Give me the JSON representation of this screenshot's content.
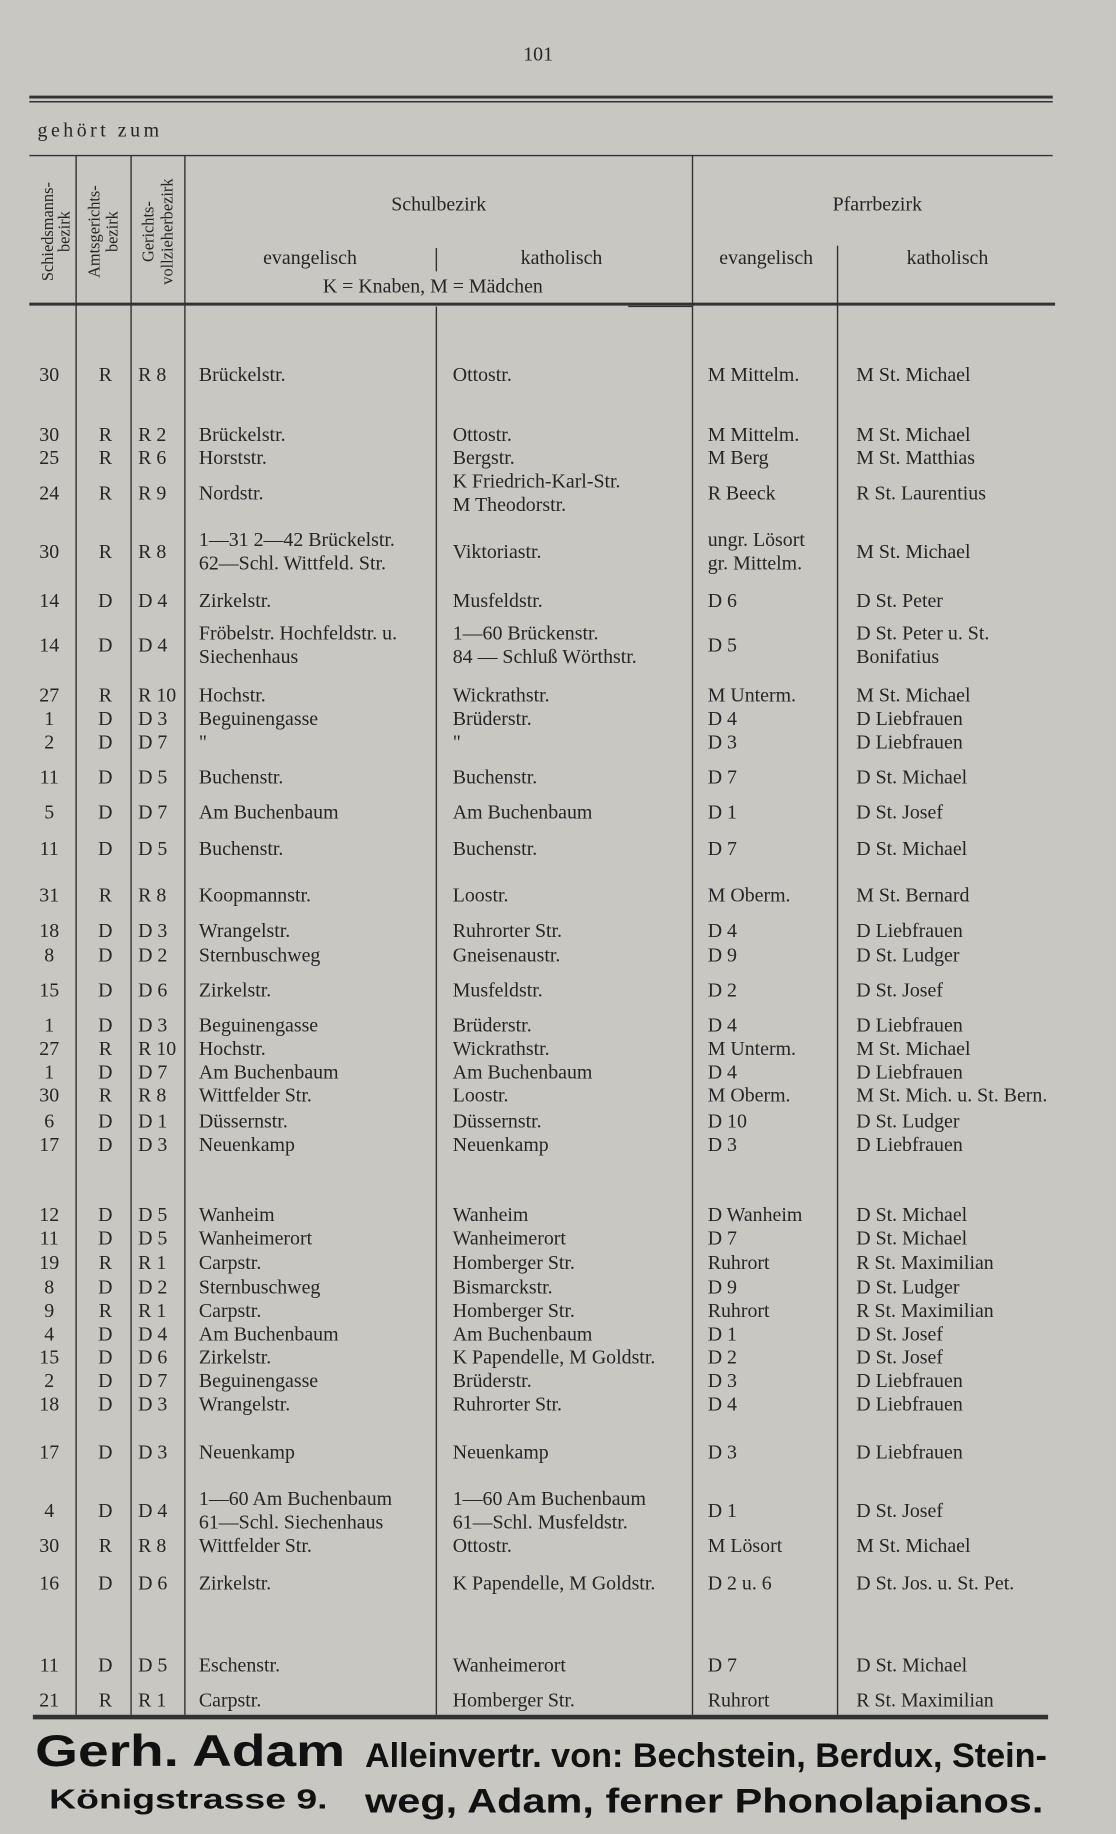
{
  "page_number": "101",
  "header_note": "gehört zum",
  "columns": {
    "schiedsmann": [
      "Schiedsmanns-",
      "bezirk"
    ],
    "amtsgericht": [
      "Amtsgerichts-",
      "bezirk"
    ],
    "gerichtsvollzieher": [
      "Gerichts-",
      "vollzieherbezirk"
    ],
    "schulbezirk": "Schulbezirk",
    "pfarrbezirk": "Pfarrbezirk",
    "schul_ev": "evangelisch",
    "schul_kath": "katholisch",
    "key": "K = Knaben, M = Mädchen",
    "pfarr_ev": "evangelisch",
    "pfarr_kath": "katholisch"
  },
  "rows": [
    [
      "30",
      "R",
      "R 8",
      "Brückelstr.",
      "Ottostr.",
      "M Mittelm.",
      "M St. Michael"
    ],
    [
      "30",
      "R",
      "R 2",
      "Brückelstr.",
      "Ottostr.",
      "M Mittelm.",
      "M St. Michael"
    ],
    [
      "25",
      "R",
      "R 6",
      "Horststr.",
      "Bergstr.",
      "M Berg",
      "M St. Matthias"
    ],
    [
      "24",
      "R",
      "R 9",
      "Nordstr.",
      [
        "K Friedrich-Karl-Str.",
        "M Theodorstr."
      ],
      "R Beeck",
      "R St. Laurentius"
    ],
    [
      "30",
      "R",
      "R 8",
      [
        "1—31 2—42 Brückelstr.",
        "62—Schl. Wittfeld. Str."
      ],
      "Viktoriastr.",
      [
        "ungr. Lösort",
        "gr. Mittelm."
      ],
      "M St. Michael"
    ],
    [
      "14",
      "D",
      "D 4",
      "Zirkelstr.",
      "Musfeldstr.",
      "D 6",
      "D St. Peter"
    ],
    [
      "14",
      "D",
      "D 4",
      [
        "Fröbelstr. Hochfeldstr. u.",
        "Siechenhaus"
      ],
      [
        "1—60 Brückenstr.",
        "84 — Schluß Wörthstr."
      ],
      "D 5",
      [
        "D St. Peter u. St.",
        "Bonifatius"
      ]
    ],
    [
      "27",
      "R",
      "R 10",
      "Hochstr.",
      "Wickrathstr.",
      "M Unterm.",
      "M St. Michael"
    ],
    [
      "1",
      "D",
      "D 3",
      "Beguinengasse",
      "Brüderstr.",
      "D 4",
      "D Liebfrauen"
    ],
    [
      "2",
      "D",
      "D 7",
      "\"",
      "\"",
      "D 3",
      "D Liebfrauen"
    ],
    [
      "11",
      "D",
      "D 5",
      "Buchenstr.",
      "Buchenstr.",
      "D 7",
      "D St. Michael"
    ],
    [
      "5",
      "D",
      "D 7",
      "Am Buchenbaum",
      "Am Buchenbaum",
      "D 1",
      "D St. Josef"
    ],
    [
      "11",
      "D",
      "D 5",
      "Buchenstr.",
      "Buchenstr.",
      "D 7",
      "D St. Michael"
    ],
    [
      "31",
      "R",
      "R 8",
      "Koopmannstr.",
      "Loostr.",
      "M Oberm.",
      "M St. Bernard"
    ],
    [
      "18",
      "D",
      "D 3",
      "Wrangelstr.",
      "Ruhrorter Str.",
      "D 4",
      "D Liebfrauen"
    ],
    [
      "8",
      "D",
      "D 2",
      "Sternbuschweg",
      "Gneisenaustr.",
      "D 9",
      "D St. Ludger"
    ],
    [
      "15",
      "D",
      "D 6",
      "Zirkelstr.",
      "Musfeldstr.",
      "D 2",
      "D St. Josef"
    ],
    [
      "1",
      "D",
      "D 3",
      "Beguinengasse",
      "Brüderstr.",
      "D 4",
      "D Liebfrauen"
    ],
    [
      "27",
      "R",
      "R 10",
      "Hochstr.",
      "Wickrathstr.",
      "M Unterm.",
      "M St. Michael"
    ],
    [
      "1",
      "D",
      "D 7",
      "Am Buchenbaum",
      "Am Buchenbaum",
      "D 4",
      "D Liebfrauen"
    ],
    [
      "30",
      "R",
      "R 8",
      "Wittfelder Str.",
      "Loostr.",
      "M Oberm.",
      "M St. Mich. u. St. Bern."
    ],
    [
      "6",
      "D",
      "D 1",
      "Düssernstr.",
      "Düssernstr.",
      "D 10",
      "D St. Ludger"
    ],
    [
      "17",
      "D",
      "D 3",
      "Neuenkamp",
      "Neuenkamp",
      "D 3",
      "D Liebfrauen"
    ],
    [
      "12",
      "D",
      "D 5",
      "Wanheim",
      "Wanheim",
      "D Wanheim",
      "D St. Michael"
    ],
    [
      "11",
      "D",
      "D 5",
      "Wanheimerort",
      "Wanheimerort",
      "D 7",
      "D St. Michael"
    ],
    [
      "19",
      "R",
      "R 1",
      "Carpstr.",
      "Homberger Str.",
      "Ruhrort",
      "R St. Maximilian"
    ],
    [
      "8",
      "D",
      "D 2",
      "Sternbuschweg",
      "Bismarckstr.",
      "D 9",
      "D St. Ludger"
    ],
    [
      "9",
      "R",
      "R 1",
      "Carpstr.",
      "Homberger Str.",
      "Ruhrort",
      "R St. Maximilian"
    ],
    [
      "4",
      "D",
      "D 4",
      "Am Buchenbaum",
      "Am Buchenbaum",
      "D 1",
      "D St. Josef"
    ],
    [
      "15",
      "D",
      "D 6",
      "Zirkelstr.",
      "K Papendelle, M Goldstr.",
      "D 2",
      "D St. Josef"
    ],
    [
      "2",
      "D",
      "D 7",
      "Beguinengasse",
      "Brüderstr.",
      "D 3",
      "D Liebfrauen"
    ],
    [
      "18",
      "D",
      "D 3",
      "Wrangelstr.",
      "Ruhrorter Str.",
      "D 4",
      "D Liebfrauen"
    ],
    [
      "17",
      "D",
      "D 3",
      "Neuenkamp",
      "Neuenkamp",
      "D 3",
      "D Liebfrauen"
    ],
    [
      "4",
      "D",
      "D 4",
      [
        "1—60 Am Buchenbaum",
        "61—Schl. Siechenhaus"
      ],
      [
        "1—60 Am Buchenbaum",
        "61—Schl. Musfeldstr."
      ],
      "D 1",
      "D St. Josef"
    ],
    [
      "30",
      "R",
      "R 8",
      "Wittfelder Str.",
      "Ottostr.",
      "M Lösort",
      "M St. Michael"
    ],
    [
      "16",
      "D",
      "D 6",
      "Zirkelstr.",
      "K Papendelle, M Goldstr.",
      "D 2 u. 6",
      "D St. Jos. u. St. Pet."
    ],
    [
      "11",
      "D",
      "D 5",
      "Eschenstr.",
      "Wanheimerort",
      "D 7",
      "D St. Michael"
    ],
    [
      "21",
      "R",
      "R 1",
      "Carpstr.",
      "Homberger Str.",
      "Ruhrort",
      "R St. Maximilian"
    ]
  ],
  "advertisement": {
    "name": "Gerh. Adam",
    "address": "Königstrasse 9.",
    "lines": [
      "Alleinvertr. von: Bechstein, Berdux, Stein-",
      "weg, Adam, ferner Phonolapianos."
    ]
  }
}
